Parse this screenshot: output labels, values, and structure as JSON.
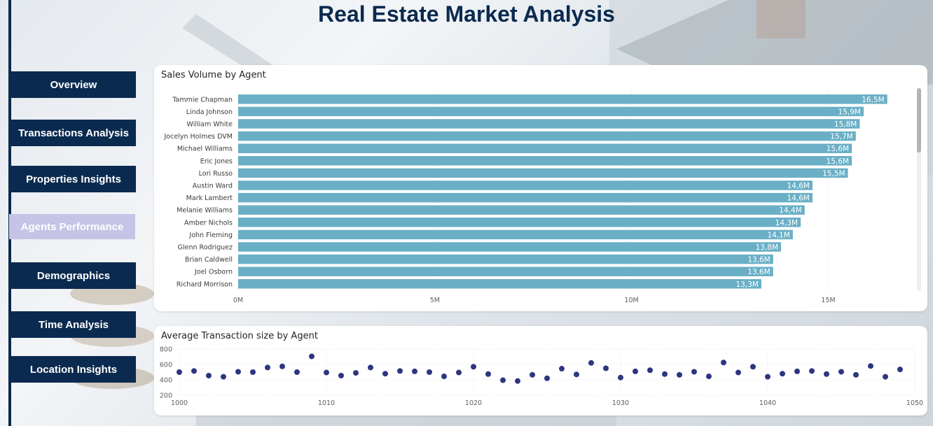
{
  "page": {
    "title": "Real Estate Market Analysis"
  },
  "nav": {
    "items": [
      {
        "label": "Overview"
      },
      {
        "label": "Transactions Analysis"
      },
      {
        "label": "Properties Insights"
      },
      {
        "label": "Agents Performance"
      },
      {
        "label": "Demographics"
      },
      {
        "label": "Time Analysis"
      },
      {
        "label": "Location Insights"
      }
    ],
    "active_index": 3
  },
  "colors": {
    "nav_bg": "#0b2a4f",
    "nav_active": "#c5c4e6",
    "bar": "#6aafc6",
    "dot": "#2e3580"
  },
  "chart_data": [
    {
      "type": "bar",
      "orientation": "horizontal",
      "title": "Sales Volume by Agent",
      "categories": [
        "Tammie Chapman",
        "Linda Johnson",
        "William White",
        "Jocelyn Holmes DVM",
        "Michael Williams",
        "Eric Jones",
        "Lori Russo",
        "Austin Ward",
        "Mark Lambert",
        "Melanie Williams",
        "Amber Nichols",
        "John Fleming",
        "Glenn Rodriguez",
        "Brian Caldwell",
        "Joel Osborn",
        "Richard Morrison"
      ],
      "values": [
        16.5,
        15.9,
        15.8,
        15.7,
        15.6,
        15.6,
        15.5,
        14.6,
        14.6,
        14.4,
        14.3,
        14.1,
        13.8,
        13.6,
        13.6,
        13.3
      ],
      "value_labels": [
        "16,5M",
        "15,9M",
        "15,8M",
        "15,7M",
        "15,6M",
        "15,6M",
        "15,5M",
        "14,6M",
        "14,6M",
        "14,4M",
        "14,3M",
        "14,1M",
        "13,8M",
        "13,6M",
        "13,6M",
        "13,3M"
      ],
      "xticks": [
        {
          "v": 0,
          "label": "0M"
        },
        {
          "v": 5,
          "label": "5M"
        },
        {
          "v": 10,
          "label": "10M"
        },
        {
          "v": 15,
          "label": "15M"
        }
      ],
      "xlim": [
        0,
        17.2
      ],
      "grid": true
    },
    {
      "type": "scatter",
      "title": "Average Transaction size by Agent",
      "x": [
        1000,
        1001,
        1002,
        1003,
        1004,
        1005,
        1006,
        1007,
        1008,
        1009,
        1010,
        1011,
        1012,
        1013,
        1014,
        1015,
        1016,
        1017,
        1018,
        1019,
        1020,
        1021,
        1022,
        1023,
        1024,
        1025,
        1026,
        1027,
        1028,
        1029,
        1030,
        1031,
        1032,
        1033,
        1034,
        1035,
        1036,
        1037,
        1038,
        1039,
        1040,
        1041,
        1042,
        1043,
        1044,
        1045,
        1046,
        1047,
        1048,
        1049
      ],
      "y": [
        500,
        515,
        455,
        440,
        505,
        500,
        560,
        575,
        500,
        705,
        495,
        455,
        490,
        560,
        480,
        515,
        510,
        500,
        445,
        495,
        570,
        475,
        395,
        385,
        465,
        420,
        545,
        470,
        620,
        550,
        430,
        510,
        525,
        475,
        465,
        505,
        445,
        625,
        495,
        570,
        440,
        480,
        510,
        515,
        475,
        505,
        465,
        580,
        440,
        535
      ],
      "xticks": [
        1000,
        1010,
        1020,
        1030,
        1040,
        1050
      ],
      "yticks": [
        200,
        400,
        600,
        800
      ],
      "xlim": [
        1000,
        1050
      ],
      "ylim": [
        200,
        800
      ],
      "grid": true
    }
  ]
}
